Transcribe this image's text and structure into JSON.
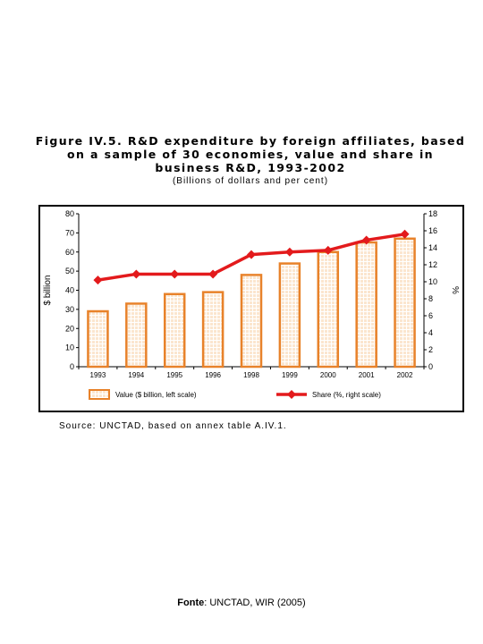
{
  "figure": {
    "title_lines": [
      "Figure IV.5. R&D expenditure by foreign affiliates, based",
      "on a sample of 30 economies, value and share in",
      "business R&D, 1993-2002"
    ],
    "subtitle": "(Billions of dollars and per cent)",
    "source": "Source: UNCTAD, based on annex table A.IV.1.",
    "fonte_label": "Fonte",
    "fonte_text": ": UNCTAD, WIR (2005)"
  },
  "colors": {
    "bar_edge": "#e8822a",
    "bar_fill": "#fbe6cf",
    "line": "#e31a1c"
  },
  "chart_data": {
    "type": "bar",
    "categories": [
      "1993",
      "1994",
      "1995",
      "1996",
      "1998",
      "1999",
      "2000",
      "2001",
      "2002"
    ],
    "series": [
      {
        "name": "Value ($ billion, left scale)",
        "type": "bar",
        "axis": "left",
        "values": [
          29,
          33,
          38,
          39,
          48,
          54,
          60,
          65,
          67
        ]
      },
      {
        "name": "Share (%, right scale)",
        "type": "line",
        "axis": "right",
        "values": [
          10.2,
          10.9,
          10.9,
          10.9,
          13.2,
          13.5,
          13.7,
          14.9,
          15.6
        ]
      }
    ],
    "ylabel": "$ billion",
    "y2label": "%",
    "ylim": [
      0,
      80
    ],
    "y2lim": [
      0,
      18
    ],
    "yticks": [
      0,
      10,
      20,
      30,
      40,
      50,
      60,
      70,
      80
    ],
    "y2ticks": [
      0,
      2,
      4,
      6,
      8,
      10,
      12,
      14,
      16,
      18
    ],
    "grid": false,
    "legend_position": "bottom"
  }
}
